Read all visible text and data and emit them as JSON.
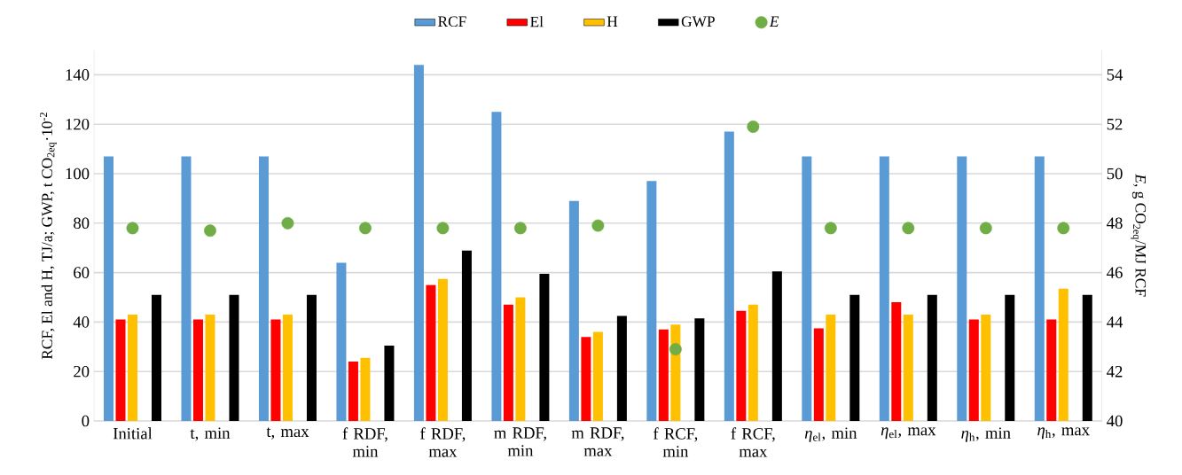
{
  "chart_data": {
    "type": "bar",
    "categories": [
      "Initial",
      "t, min",
      "t, max",
      "f RDF, min",
      "f RDF, max",
      "m RDF, min",
      "m RDF, max",
      "f RCF, min",
      "f RCF, max",
      "*η*$_{el}$, min",
      "*η*$_{el}$, max",
      "*η*$_{h}$, min",
      "*η*$_{h}$, max"
    ],
    "series": [
      {
        "name": "RCF",
        "color": "#5b9bd5",
        "values": [
          107,
          107,
          107,
          64,
          144,
          125,
          89,
          97,
          117,
          107,
          107,
          107,
          107
        ]
      },
      {
        "name": "El",
        "color": "#ff0000",
        "values": [
          41,
          41,
          41,
          24,
          55,
          47,
          34,
          37,
          44.5,
          37.5,
          48,
          41,
          41
        ]
      },
      {
        "name": "H",
        "color": "#ffc000",
        "values": [
          43,
          43,
          43,
          25.5,
          57.5,
          50,
          36,
          39,
          47,
          43,
          43,
          43,
          53.5
        ]
      },
      {
        "name": "GWP",
        "color": "#000000",
        "values": [
          51,
          51,
          51,
          30.5,
          69,
          59.5,
          42.5,
          41.5,
          60.5,
          51,
          51,
          51,
          51
        ]
      },
      {
        "name": "E",
        "type": "scatter",
        "axis": "y2",
        "color": "#70ad47",
        "values": [
          47.8,
          47.7,
          48.0,
          47.8,
          47.8,
          47.8,
          47.9,
          42.9,
          51.9,
          47.8,
          47.8,
          47.8,
          47.8
        ]
      }
    ],
    "ylabel": "RCF, El and H, TJ/a;  GWP, t CO$_{2eq}$·10$^{-2}$",
    "y2label": "*E*, g CO$_{2eq}$/MJ RCF",
    "ylim": [
      0,
      150
    ],
    "yticks": [
      0,
      20,
      40,
      60,
      80,
      100,
      120,
      140
    ],
    "y2lim": [
      40,
      55
    ],
    "y2ticks": [
      40,
      42,
      44,
      46,
      48,
      50,
      52,
      54
    ],
    "grid": "y",
    "legend": "top"
  }
}
